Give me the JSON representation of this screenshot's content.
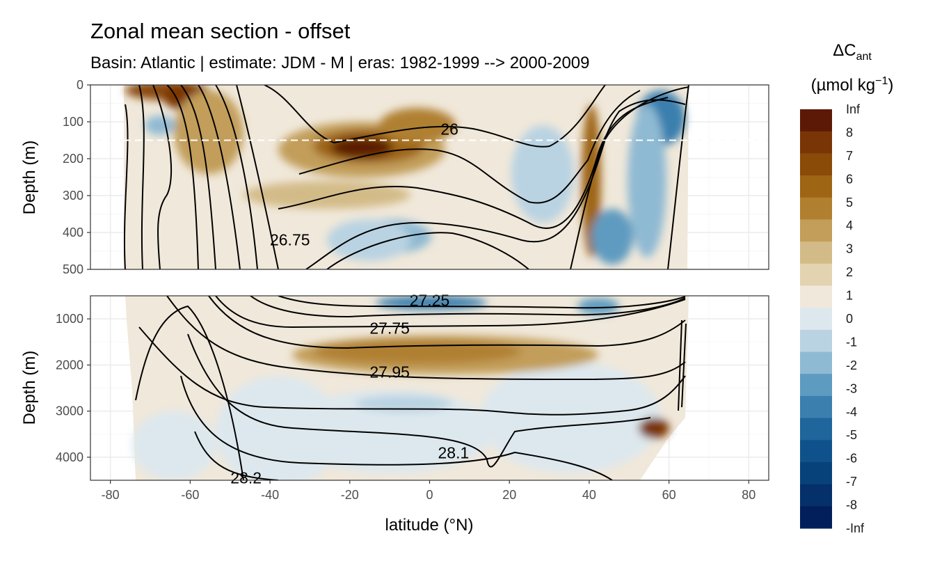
{
  "chart_data": {
    "type": "heatmap",
    "title": "Zonal mean section - offset",
    "subtitle": "Basin: Atlantic | estimate: JDM - M | eras: 1982-1999 --> 2000-2009",
    "xlabel": "latitude (°N)",
    "ylabel": "Depth (m)",
    "xlim": [
      -85,
      85
    ],
    "x_ticks": [
      "-80",
      "-60",
      "-40",
      "-20",
      "0",
      "20",
      "40",
      "60",
      "80"
    ],
    "x_tick_values": [
      -80,
      -60,
      -40,
      -20,
      0,
      20,
      40,
      60,
      80
    ],
    "grid": true,
    "panels": [
      {
        "name": "upper",
        "ylim": [
          0,
          500
        ],
        "y_ticks": [
          "0",
          "100",
          "200",
          "300",
          "400",
          "500"
        ],
        "y_tick_values": [
          0,
          100,
          200,
          300,
          400,
          500
        ],
        "reference_depth": 150,
        "contour_labels": [
          {
            "text": "26",
            "x": 5,
            "y": 120
          },
          {
            "text": "26.75",
            "x": -35,
            "y": 420
          }
        ]
      },
      {
        "name": "lower",
        "ylim": [
          500,
          4500
        ],
        "y_ticks": [
          "1000",
          "2000",
          "3000",
          "4000"
        ],
        "y_tick_values": [
          1000,
          2000,
          3000,
          4000
        ],
        "contour_labels": [
          {
            "text": "27.25",
            "x": 0,
            "y": 600
          },
          {
            "text": "27.75",
            "x": -10,
            "y": 1200
          },
          {
            "text": "27.95",
            "x": -10,
            "y": 2150
          },
          {
            "text": "28.1",
            "x": 6,
            "y": 3900
          },
          {
            "text": "28.2",
            "x": -46,
            "y": 4450
          }
        ]
      }
    ],
    "legend": {
      "title": "ΔC",
      "title_subscript": "ant",
      "unit_prefix": "(µmol kg",
      "unit_superscript": "−1",
      "unit_suffix": ")",
      "position": "right",
      "labels": [
        "Inf",
        "8",
        "7",
        "6",
        "5",
        "4",
        "3",
        "2",
        "1",
        "0",
        "-1",
        "-2",
        "-3",
        "-4",
        "-5",
        "-6",
        "-7",
        "-8",
        "-Inf"
      ],
      "colors": [
        "#5c1a06",
        "#7a3506",
        "#8a4a08",
        "#9e6515",
        "#b08030",
        "#c29e5a",
        "#d3bb88",
        "#e3d3b0",
        "#f0e8da",
        "#dde8ee",
        "#b9d3e2",
        "#8fbad3",
        "#5e9bc0",
        "#3a7fae",
        "#1f669c",
        "#0f528b",
        "#08427a",
        "#05306a",
        "#021f5c"
      ]
    },
    "colors": {
      "strong_positive": "#5c1a06",
      "positive": "#b08030",
      "near_zero_pos": "#f0e8da",
      "near_zero_neg": "#dde8ee",
      "negative": "#5e9bc0",
      "strong_negative": "#021f5c"
    }
  }
}
